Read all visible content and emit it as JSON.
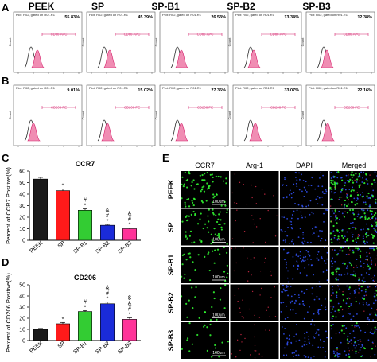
{
  "panel_labels": {
    "A": "A",
    "B": "B",
    "C": "C",
    "D": "D",
    "E": "E"
  },
  "flow": {
    "groups": [
      "PEEK",
      "SP",
      "SP-B1",
      "SP-B2",
      "SP-B3"
    ],
    "plot_header": "Plot: R02, gated on R01.R1",
    "y_axis_label": "Count",
    "row_A": {
      "gate_label": "CD80-APC",
      "percents": [
        "55.83%",
        "45.39%",
        "26.53%",
        "13.34%",
        "12.38%"
      ]
    },
    "row_B": {
      "gate_label": "CD206-PE",
      "percents": [
        "9.01%",
        "15.02%",
        "27.35%",
        "33.07%",
        "22.16%"
      ]
    }
  },
  "chart_data": [
    {
      "type": "bar",
      "title": "CCR7",
      "ylabel": "Percent of CCR7 Positive(%)",
      "xlabel": "",
      "categories": [
        "PEEK",
        "SP",
        "SP-B1",
        "SP-B2",
        "SP-B3"
      ],
      "values": [
        53,
        43,
        26,
        13,
        10
      ],
      "errors": [
        1.5,
        1.5,
        1.2,
        0.8,
        0.8
      ],
      "ylim": [
        0,
        60
      ],
      "yticks": [
        "0",
        "10",
        "20",
        "30",
        "40",
        "50",
        "60"
      ],
      "colors": [
        "#1a1a1a",
        "#ff1a1a",
        "#33cc33",
        "#1a2bd9",
        "#ff3399"
      ],
      "annotations": [
        [],
        [
          "*"
        ],
        [
          "#",
          "*"
        ],
        [
          "&",
          "#",
          "*"
        ],
        [
          "&",
          "#",
          "*"
        ]
      ]
    },
    {
      "type": "bar",
      "title": "CD206",
      "ylabel": "Percent of CD206 Positive(%)",
      "xlabel": "",
      "categories": [
        "PEEK",
        "SP",
        "SP-B1",
        "SP-B2",
        "SP-B3"
      ],
      "values": [
        10,
        15,
        26,
        33,
        19
      ],
      "errors": [
        0.8,
        1.2,
        0.8,
        1.5,
        1.5
      ],
      "ylim": [
        0,
        50
      ],
      "yticks": [
        "0",
        "10",
        "20",
        "30",
        "40",
        "50"
      ],
      "colors": [
        "#1a1a1a",
        "#ff1a1a",
        "#33cc33",
        "#1a2bd9",
        "#ff3399"
      ],
      "annotations": [
        [],
        [
          "*"
        ],
        [
          "#",
          "*"
        ],
        [
          "&",
          "#",
          "*"
        ],
        [
          "$",
          "&",
          "#",
          "*"
        ]
      ]
    }
  ],
  "micro": {
    "columns": [
      "CCR7",
      "Arg-1",
      "DAPI",
      "Merged"
    ],
    "rows": [
      "PEEK",
      "SP",
      "SP-B1",
      "SP-B2",
      "SP-B3"
    ],
    "scale_label": "100μm"
  }
}
